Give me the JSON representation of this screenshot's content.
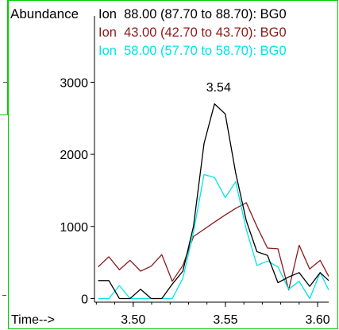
{
  "chart_data": {
    "type": "line",
    "ylabel": "Abundance",
    "xlabel": "Time-->",
    "xlim": [
      3.479,
      3.606
    ],
    "ylim": [
      -50,
      3920
    ],
    "x_ticks": [
      3.5,
      3.55,
      3.6
    ],
    "x_tick_labels": [
      "3.50",
      "3.55",
      "3.60"
    ],
    "y_ticks": [
      0,
      1000,
      2000,
      3000
    ],
    "y_tick_labels": [
      "0",
      "1000",
      "2000",
      "3000"
    ],
    "peak_annotation": {
      "label": "3.54",
      "x": 3.5437,
      "y": 2850
    },
    "x": [
      3.481,
      3.4868,
      3.4925,
      3.4983,
      3.504,
      3.5098,
      3.5155,
      3.5212,
      3.5269,
      3.5327,
      3.5384,
      3.5441,
      3.5499,
      3.5556,
      3.5613,
      3.5671,
      3.5728,
      3.5785,
      3.5843,
      3.59,
      3.5957,
      3.6014,
      3.606
    ],
    "series": [
      {
        "name": "Ion  88.00 (87.70 to 88.70): BG0",
        "color": "#000000",
        "values": [
          250,
          250,
          0,
          0,
          130,
          0,
          0,
          200,
          380,
          1000,
          2150,
          2700,
          2560,
          1740,
          1080,
          650,
          600,
          220,
          300,
          360,
          170,
          360,
          250
        ]
      },
      {
        "name": "Ion  43.00 (42.70 to 43.70): BG0",
        "color": "#8b1a1a",
        "values": [
          440,
          580,
          400,
          530,
          380,
          450,
          610,
          240,
          460,
          860,
          960,
          1060,
          1160,
          1250,
          1330,
          1000,
          700,
          690,
          120,
          740,
          410,
          530,
          310
        ]
      },
      {
        "name": "Ion  58.00 (57.70 to 58.70): BG0",
        "color": "#00e5e5",
        "values": [
          0,
          0,
          180,
          0,
          0,
          0,
          0,
          0,
          280,
          920,
          1720,
          1680,
          1400,
          1620,
          960,
          460,
          520,
          440,
          130,
          240,
          0,
          360,
          120
        ]
      }
    ]
  }
}
